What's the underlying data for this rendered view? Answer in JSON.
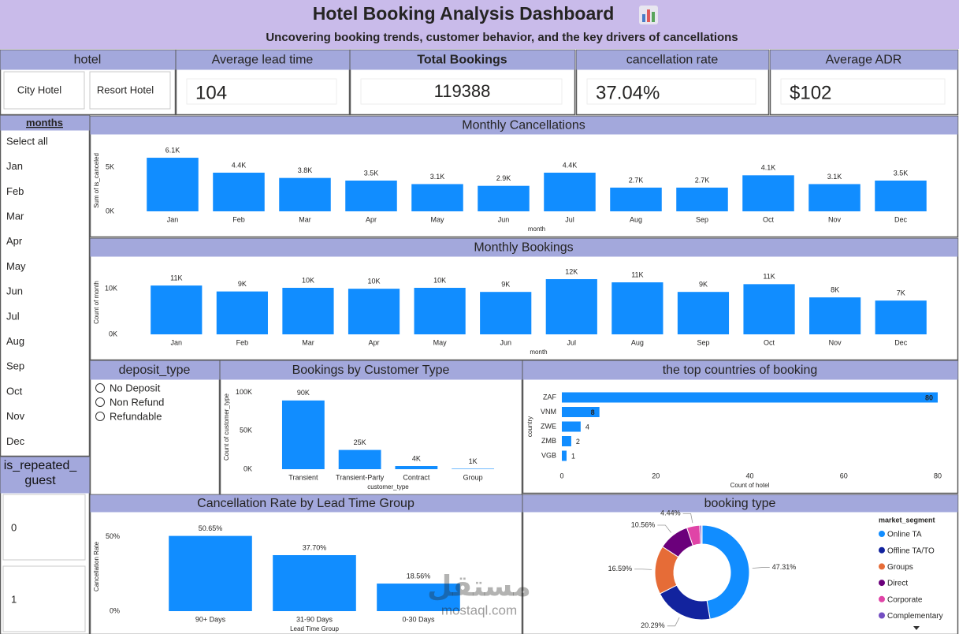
{
  "header": {
    "title": "Hotel Booking Analysis Dashboard",
    "subtitle": "Uncovering booking trends, customer behavior, and the key drivers of cancellations"
  },
  "slicers": {
    "hotel": {
      "title": "hotel",
      "options": [
        "City Hotel",
        "Resort Hotel"
      ]
    },
    "months": {
      "title": "months",
      "options": [
        "Select all",
        "Jan",
        "Feb",
        "Mar",
        "Apr",
        "May",
        "Jun",
        "Jul",
        "Aug",
        "Sep",
        "Oct",
        "Nov",
        "Dec"
      ]
    },
    "deposit_type": {
      "title": "deposit_type",
      "options": [
        "No Deposit",
        "Non Refund",
        "Refundable"
      ]
    },
    "is_repeated_guest": {
      "title": "is_repeated_guest",
      "options": [
        "0",
        "1"
      ]
    }
  },
  "cards": [
    {
      "label": "Average lead time",
      "value": 104
    },
    {
      "label": "Total Bookings",
      "value": 119388
    },
    {
      "label": "cancellation rate",
      "value": "37.04%"
    },
    {
      "label": "Average ADR",
      "value": "$102"
    }
  ],
  "watermark": [
    "مستقل",
    "mostaql.com"
  ],
  "chart_data": [
    {
      "type": "bar",
      "title": "Monthly Cancellations",
      "x_label": "month",
      "y_label": "Sum of is_canceled",
      "categories": [
        "Jan",
        "Feb",
        "Mar",
        "Apr",
        "May",
        "Jun",
        "Jul",
        "Aug",
        "Sep",
        "Oct",
        "Nov",
        "Dec"
      ],
      "values": [
        6100,
        4400,
        3800,
        3500,
        3100,
        2900,
        4400,
        2700,
        2700,
        4100,
        3100,
        3500
      ],
      "value_labels": [
        "6.1K",
        "4.4K",
        "3.8K",
        "3.5K",
        "3.1K",
        "2.9K",
        "4.4K",
        "2.7K",
        "2.7K",
        "4.1K",
        "3.1K",
        "3.5K"
      ],
      "color": "#118dff",
      "ylim": [
        0,
        7000
      ],
      "yticks": [
        {
          "value": 0,
          "label": "0K"
        },
        {
          "value": 5000,
          "label": "5K"
        }
      ],
      "grid": false
    },
    {
      "type": "bar",
      "title": "Monthly Bookings",
      "x_label": "month",
      "y_label": "Count of month",
      "categories": [
        "Jan",
        "Feb",
        "Mar",
        "Apr",
        "May",
        "Jun",
        "Jul",
        "Aug",
        "Sep",
        "Oct",
        "Nov",
        "Dec"
      ],
      "values": [
        10700,
        9400,
        10200,
        10000,
        10200,
        9300,
        12100,
        11400,
        9300,
        11000,
        8100,
        7400
      ],
      "value_labels": [
        "11K",
        "9K",
        "10K",
        "10K",
        "10K",
        "9K",
        "12K",
        "11K",
        "9K",
        "11K",
        "8K",
        "7K"
      ],
      "color": "#118dff",
      "ylim": [
        0,
        14000
      ],
      "yticks": [
        {
          "value": 0,
          "label": "0K"
        },
        {
          "value": 10000,
          "label": "10K"
        }
      ],
      "grid": false
    },
    {
      "type": "bar",
      "title": "Bookings by Customer Type",
      "x_label": "customer_type",
      "y_label": "Count of customer_type",
      "categories": [
        "Transient",
        "Transient-Party",
        "Contract",
        "Group"
      ],
      "values": [
        89600,
        25100,
        4100,
        600
      ],
      "value_labels": [
        "90K",
        "25K",
        "4K",
        "1K"
      ],
      "color": "#118dff",
      "ylim": [
        0,
        110000
      ],
      "yticks": [
        {
          "value": 0,
          "label": "0K"
        },
        {
          "value": 50000,
          "label": "50K"
        },
        {
          "value": 100000,
          "label": "100K"
        }
      ],
      "grid": false
    },
    {
      "type": "bar",
      "orientation": "horizontal",
      "title": "the top countries of booking",
      "x_label": "Count of hotel",
      "y_label": "country",
      "categories": [
        "ZAF",
        "VNM",
        "ZWE",
        "ZMB",
        "VGB"
      ],
      "values": [
        80,
        8,
        4,
        2,
        1
      ],
      "color": "#118dff",
      "xlim": [
        0,
        80
      ],
      "xticks": [
        0,
        20,
        40,
        60,
        80
      ],
      "grid": false
    },
    {
      "type": "bar",
      "title": "Cancellation Rate by Lead Time Group",
      "x_label": "Lead Time Group",
      "y_label": "Cancellation Rate",
      "categories": [
        "90+ Days",
        "31-90 Days",
        "0-30 Days"
      ],
      "values": [
        50.65,
        37.7,
        18.56
      ],
      "value_labels": [
        "50.65%",
        "37.70%",
        "18.56%"
      ],
      "color": "#118dff",
      "ylim": [
        0,
        60
      ],
      "yticks": [
        {
          "value": 0,
          "label": "0%"
        },
        {
          "value": 50,
          "label": "50%"
        }
      ],
      "grid": false
    },
    {
      "type": "pie",
      "donut": true,
      "title": "booking type",
      "legend_title": "market_segment",
      "legend": "right",
      "categories": [
        "Online TA",
        "Offline TA/TO",
        "Groups",
        "Direct",
        "Corporate",
        "Complementary"
      ],
      "values": [
        47.31,
        20.29,
        16.59,
        10.56,
        4.44,
        0.62
      ],
      "value_labels": [
        "47.31%",
        "20.29%",
        "16.59%",
        "10.56%",
        "4.44%",
        null
      ],
      "colors": [
        "#118dff",
        "#12239e",
        "#e66c37",
        "#6b007b",
        "#e044a7",
        "#744ec2"
      ]
    }
  ]
}
